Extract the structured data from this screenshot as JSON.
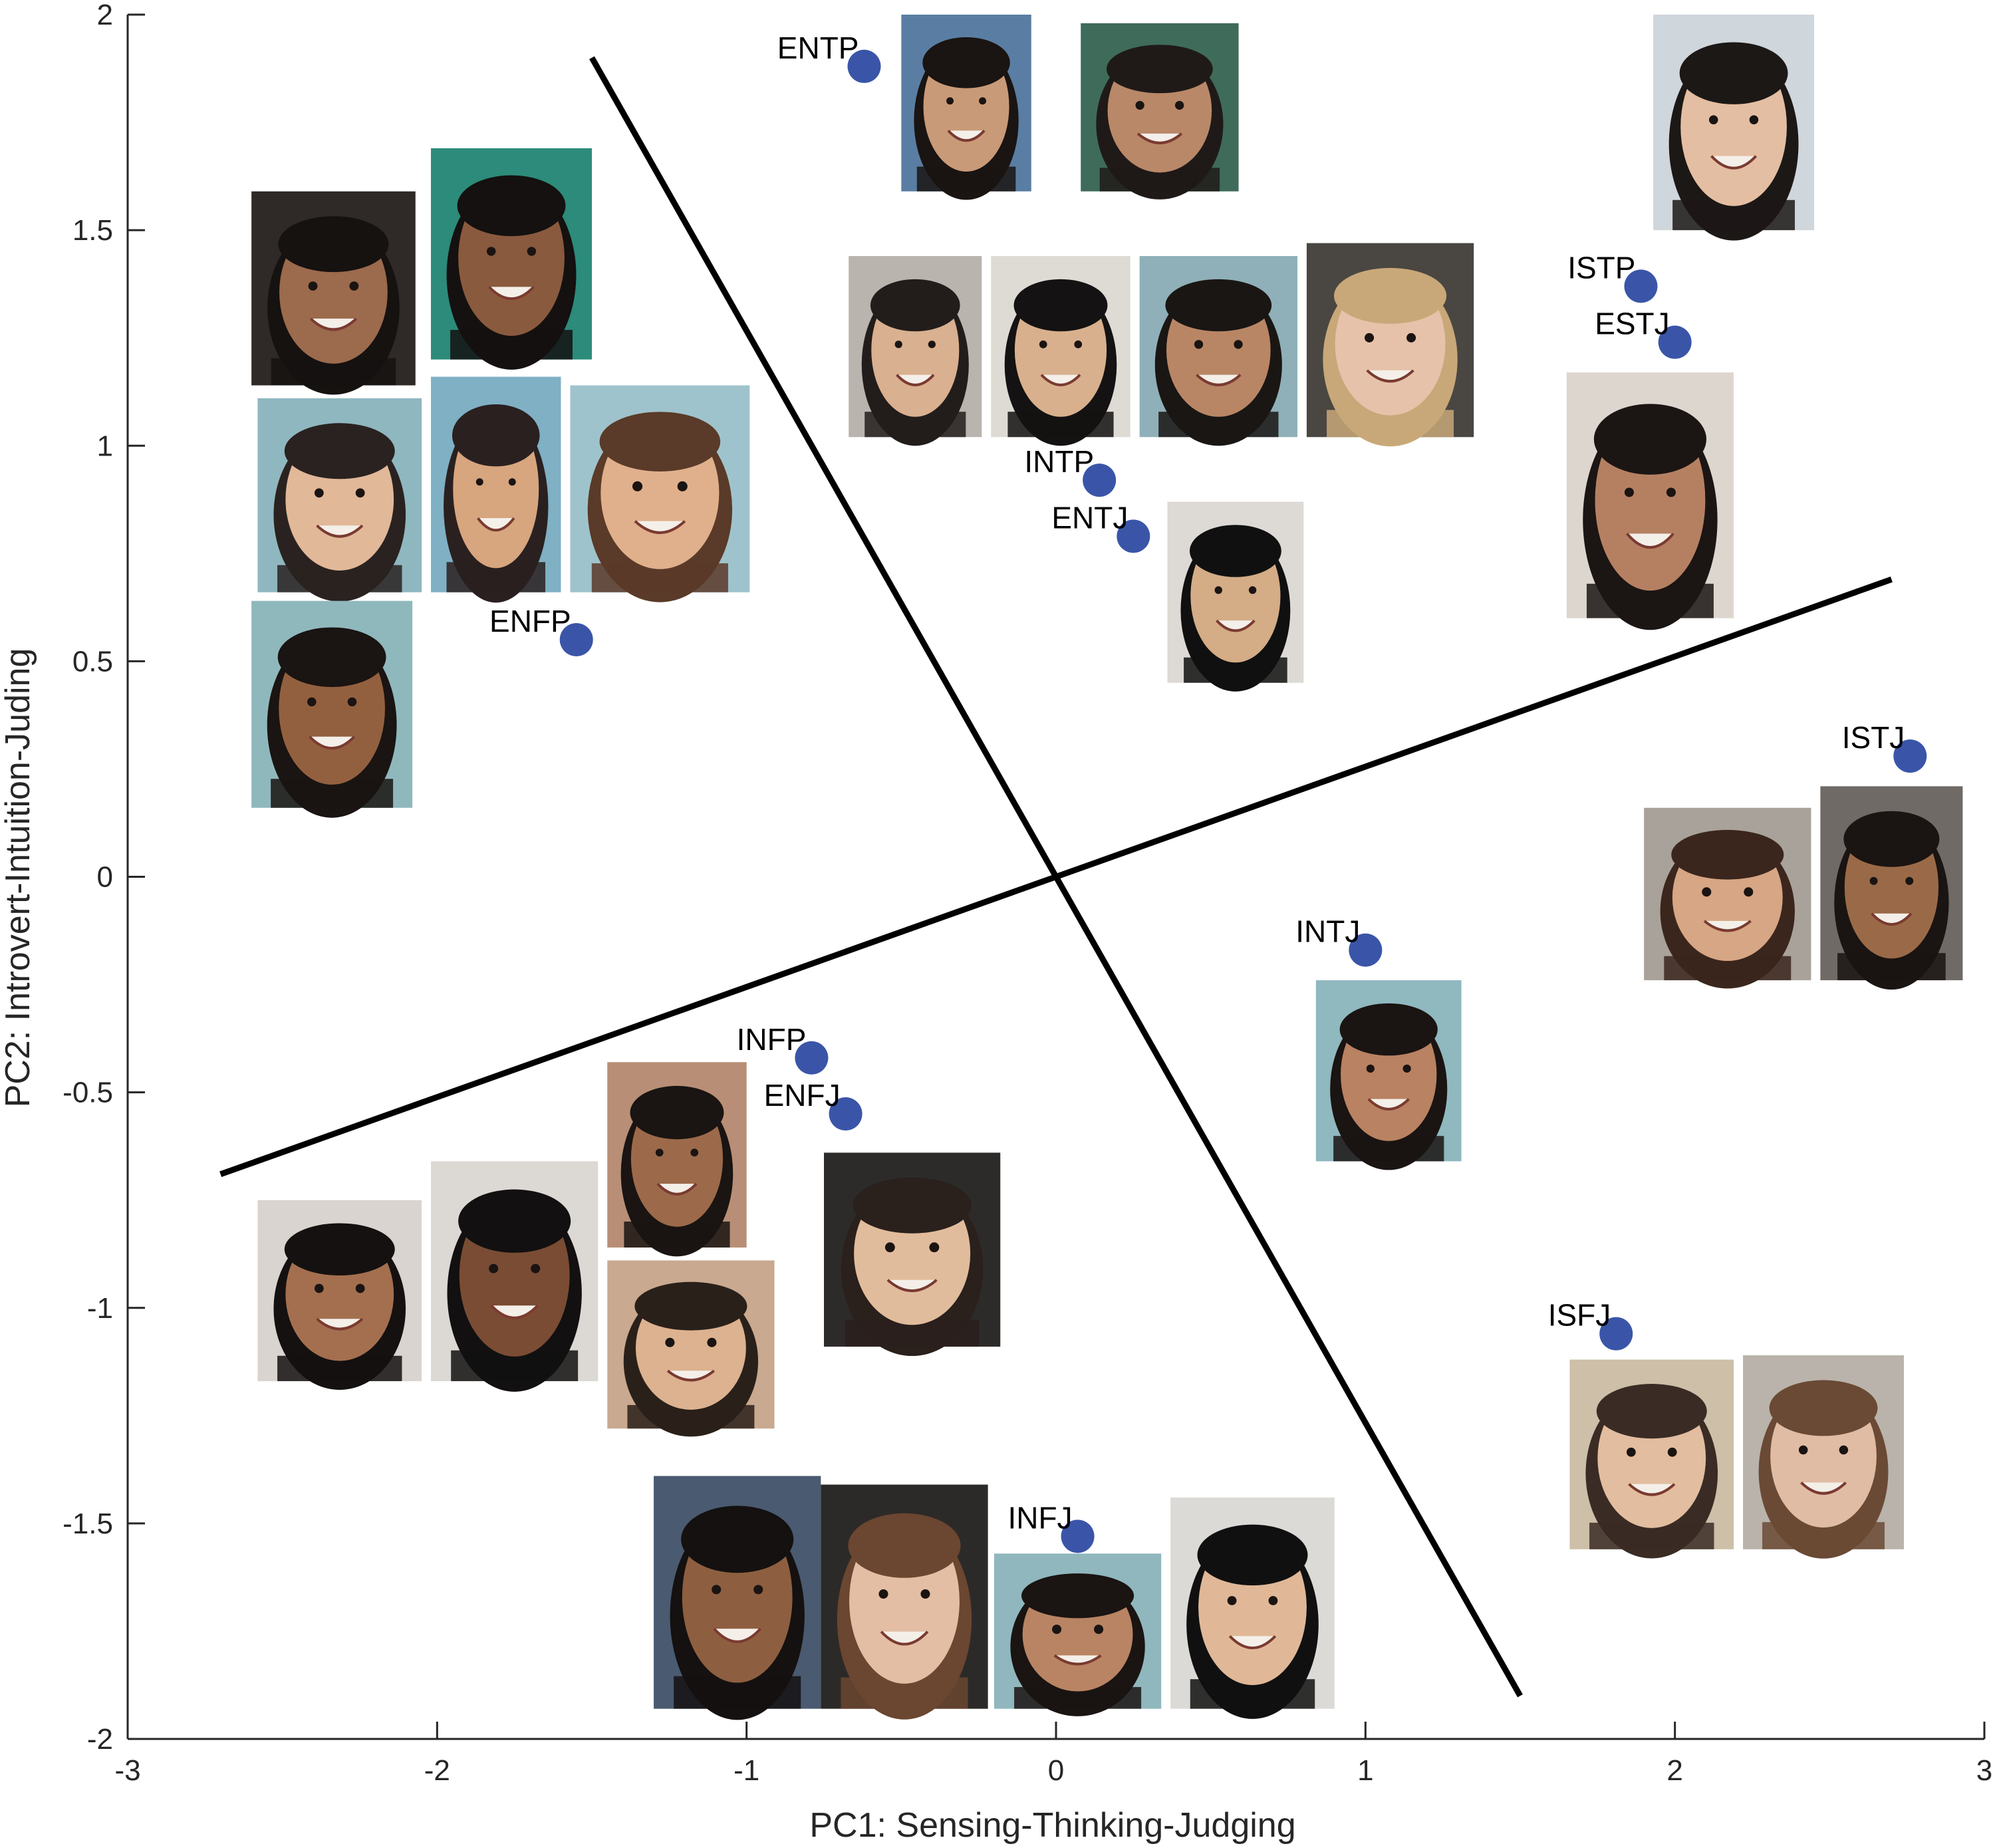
{
  "chart_data": {
    "type": "scatter",
    "xlabel": "PC1: Sensing-Thinking-Judging",
    "ylabel": "PC2: Introvert-Intuition-Juding",
    "xlim": [
      -3,
      3
    ],
    "ylim": [
      -2,
      2
    ],
    "xticks": [
      "-3",
      "-2",
      "-1",
      "0",
      "1",
      "2",
      "3"
    ],
    "xtick_values": [
      -3,
      -2,
      -1,
      0,
      1,
      2,
      3
    ],
    "yticks": [
      "-2",
      "-1.5",
      "-1",
      "-0.5",
      "0",
      "0.5",
      "1",
      "1.5",
      "2"
    ],
    "ytick_values": [
      -2,
      -1.5,
      -1,
      -0.5,
      0,
      0.5,
      1,
      1.5,
      2
    ],
    "grid": false,
    "marker_color": "#3a55a8",
    "points": [
      {
        "label": "ENTP",
        "x": -0.62,
        "y": 1.88
      },
      {
        "label": "ISTP",
        "x": 1.89,
        "y": 1.37
      },
      {
        "label": "ESTJ",
        "x": 2.0,
        "y": 1.24
      },
      {
        "label": "INTP",
        "x": 0.14,
        "y": 0.92
      },
      {
        "label": "ENTJ",
        "x": 0.25,
        "y": 0.79
      },
      {
        "label": "ENFP",
        "x": -1.55,
        "y": 0.55
      },
      {
        "label": "ISTJ",
        "x": 2.76,
        "y": 0.28
      },
      {
        "label": "INTJ",
        "x": 1.0,
        "y": -0.17
      },
      {
        "label": "INFP",
        "x": -0.79,
        "y": -0.42
      },
      {
        "label": "ENFJ",
        "x": -0.68,
        "y": -0.55
      },
      {
        "label": "ISFJ",
        "x": 1.81,
        "y": -1.06
      },
      {
        "label": "INFJ",
        "x": 0.07,
        "y": -1.53
      }
    ],
    "lines": [
      {
        "x": [
          -1.5,
          1.5
        ],
        "y": [
          1.9,
          -1.9
        ]
      },
      {
        "x": [
          -2.7,
          2.7
        ],
        "y": [
          -0.69,
          0.69
        ]
      }
    ],
    "photos": [
      {
        "x": [
          -0.5,
          -0.08
        ],
        "y": [
          1.59,
          2.0
        ],
        "skin": "#c99a78",
        "hair": "#1a1412",
        "bg": "#5a7ea3"
      },
      {
        "x": [
          0.08,
          0.59
        ],
        "y": [
          1.59,
          1.98
        ],
        "skin": "#b98868",
        "hair": "#1f1a18",
        "bg": "#3f6b5a"
      },
      {
        "x": [
          1.93,
          2.45
        ],
        "y": [
          1.5,
          2.0
        ],
        "skin": "#e4bea2",
        "hair": "#1c1816",
        "bg": "#cfd6dc"
      },
      {
        "x": [
          -2.6,
          -2.07
        ],
        "y": [
          1.14,
          1.59
        ],
        "skin": "#9c6a4c",
        "hair": "#151210",
        "bg": "#2f2a27"
      },
      {
        "x": [
          -2.02,
          -1.5
        ],
        "y": [
          1.2,
          1.69
        ],
        "skin": "#8a5a3e",
        "hair": "#141110",
        "bg": "#2c8b7a"
      },
      {
        "x": [
          -0.67,
          -0.24
        ],
        "y": [
          1.02,
          1.44
        ],
        "skin": "#d9b090",
        "hair": "#221d1b",
        "bg": "#b9b4ae"
      },
      {
        "x": [
          -0.21,
          0.24
        ],
        "y": [
          1.02,
          1.44
        ],
        "skin": "#d8b08e",
        "hair": "#141212",
        "bg": "#dedbd5"
      },
      {
        "x": [
          0.27,
          0.78
        ],
        "y": [
          1.02,
          1.44
        ],
        "skin": "#b98665",
        "hair": "#1a1614",
        "bg": "#8fb0b8"
      },
      {
        "x": [
          0.81,
          1.35
        ],
        "y": [
          1.02,
          1.47
        ],
        "skin": "#e6c2aa",
        "hair": "#c8a878",
        "bg": "#4a4642"
      },
      {
        "x": [
          1.65,
          2.19
        ],
        "y": [
          0.6,
          1.17
        ],
        "skin": "#b58062",
        "hair": "#1b1514",
        "bg": "#ddd6cf"
      },
      {
        "x": [
          -2.58,
          -2.05
        ],
        "y": [
          0.66,
          1.11
        ],
        "skin": "#e1b898",
        "hair": "#2a2220",
        "bg": "#8fb7c0"
      },
      {
        "x": [
          -2.02,
          -1.6
        ],
        "y": [
          0.66,
          1.16
        ],
        "skin": "#d7a57e",
        "hair": "#2a2020",
        "bg": "#7fb0c4"
      },
      {
        "x": [
          -1.57,
          -0.99
        ],
        "y": [
          0.66,
          1.14
        ],
        "skin": "#e0b08c",
        "hair": "#5a3a28",
        "bg": "#9fc3cc"
      },
      {
        "x": [
          0.36,
          0.8
        ],
        "y": [
          0.45,
          0.87
        ],
        "skin": "#d4ac86",
        "hair": "#101010",
        "bg": "#dddad6"
      },
      {
        "x": [
          -2.6,
          -2.08
        ],
        "y": [
          0.16,
          0.64
        ],
        "skin": "#93603f",
        "hair": "#1a1412",
        "bg": "#8fb8bd"
      },
      {
        "x": [
          1.9,
          2.44
        ],
        "y": [
          -0.24,
          0.16
        ],
        "skin": "#d7a684",
        "hair": "#3b261d",
        "bg": "#a9a29b"
      },
      {
        "x": [
          2.47,
          2.93
        ],
        "y": [
          -0.24,
          0.21
        ],
        "skin": "#9a6a48",
        "hair": "#1a1412",
        "bg": "#6f6a66"
      },
      {
        "x": [
          0.84,
          1.31
        ],
        "y": [
          -0.66,
          -0.24
        ],
        "skin": "#b98262",
        "hair": "#1a1412",
        "bg": "#8fb8bf"
      },
      {
        "x": [
          -1.45,
          -1.0
        ],
        "y": [
          -0.86,
          -0.43
        ],
        "skin": "#9c6a4a",
        "hair": "#1a1412",
        "bg": "#b88f76"
      },
      {
        "x": [
          -0.75,
          -0.18
        ],
        "y": [
          -1.09,
          -0.64
        ],
        "skin": "#e1bc9c",
        "hair": "#2a201c",
        "bg": "#2d2b2a"
      },
      {
        "x": [
          -2.58,
          -2.05
        ],
        "y": [
          -1.17,
          -0.75
        ],
        "skin": "#a46f4f",
        "hair": "#141110",
        "bg": "#d9d4cf"
      },
      {
        "x": [
          -2.02,
          -1.48
        ],
        "y": [
          -1.17,
          -0.66
        ],
        "skin": "#7a4c34",
        "hair": "#121010",
        "bg": "#dcd9d5"
      },
      {
        "x": [
          -1.45,
          -0.91
        ],
        "y": [
          -1.28,
          -0.89
        ],
        "skin": "#dcb290",
        "hair": "#2a201a",
        "bg": "#c9a98f"
      },
      {
        "x": [
          1.66,
          2.19
        ],
        "y": [
          -1.56,
          -1.12
        ],
        "skin": "#e2bda0",
        "hair": "#3a2c24",
        "bg": "#cdbfa8"
      },
      {
        "x": [
          2.22,
          2.74
        ],
        "y": [
          -1.56,
          -1.11
        ],
        "skin": "#e0bca4",
        "hair": "#6a4a34",
        "bg": "#b9b3ab"
      },
      {
        "x": [
          -1.3,
          -0.76
        ],
        "y": [
          -1.93,
          -1.39
        ],
        "skin": "#8e5e40",
        "hair": "#141110",
        "bg": "#4a5a70"
      },
      {
        "x": [
          -0.76,
          -0.22
        ],
        "y": [
          -1.93,
          -1.41
        ],
        "skin": "#e3bea4",
        "hair": "#6b4630",
        "bg": "#2c2a28"
      },
      {
        "x": [
          -0.2,
          0.34
        ],
        "y": [
          -1.93,
          -1.57
        ],
        "skin": "#b98463",
        "hair": "#1a1412",
        "bg": "#8fb7bd"
      },
      {
        "x": [
          0.37,
          0.9
        ],
        "y": [
          -1.93,
          -1.44
        ],
        "skin": "#e0b898",
        "hair": "#111010",
        "bg": "#dcdad7"
      }
    ]
  }
}
